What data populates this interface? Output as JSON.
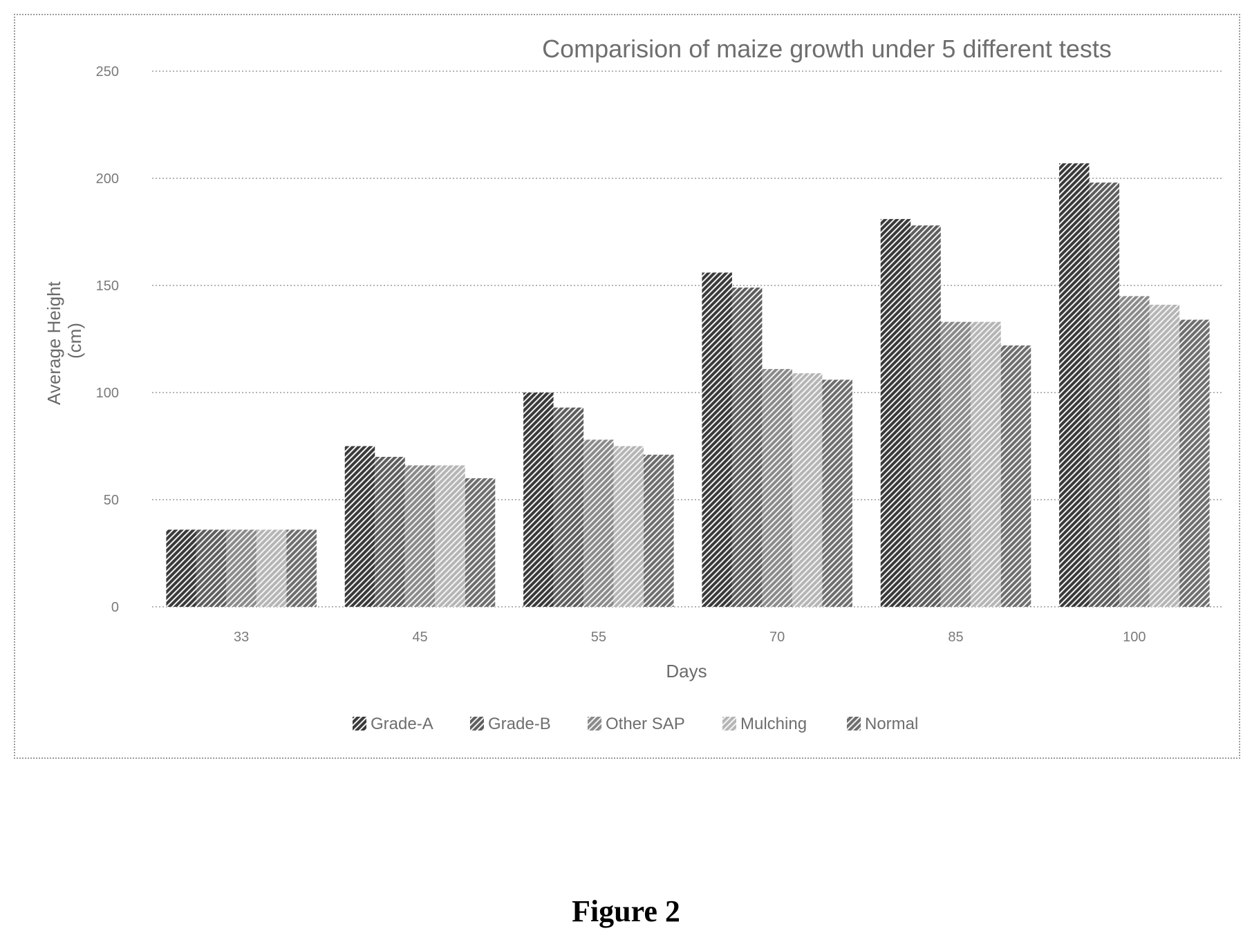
{
  "figure_caption": "Figure 2",
  "chart_data": {
    "type": "bar",
    "title": "Comparision of maize growth under 5 different tests",
    "xlabel": "Days",
    "ylabel_lines": [
      "Average Height",
      "(cm)"
    ],
    "categories": [
      "33",
      "45",
      "55",
      "70",
      "85",
      "100"
    ],
    "ylim": [
      0,
      250
    ],
    "yticks": [
      0,
      50,
      100,
      150,
      200,
      250
    ],
    "grid": true,
    "legend_position": "bottom",
    "series": [
      {
        "name": "Grade-A",
        "values": [
          36,
          75,
          100,
          156,
          181,
          207
        ],
        "color": "#3a3a3a"
      },
      {
        "name": "Grade-B",
        "values": [
          36,
          70,
          93,
          149,
          178,
          198
        ],
        "color": "#5e5e5e"
      },
      {
        "name": "Other SAP",
        "values": [
          36,
          66,
          78,
          111,
          133,
          145
        ],
        "color": "#8a8a8a"
      },
      {
        "name": "Mulching",
        "values": [
          36,
          66,
          75,
          109,
          133,
          141
        ],
        "color": "#b5b5b5"
      },
      {
        "name": "Normal",
        "values": [
          36,
          60,
          71,
          106,
          122,
          134
        ],
        "color": "#6e6e6e"
      }
    ]
  }
}
